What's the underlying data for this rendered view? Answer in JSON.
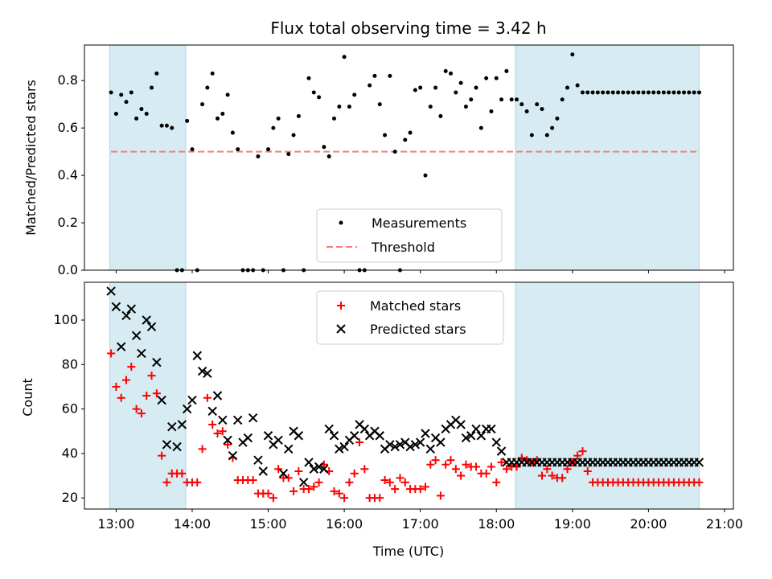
{
  "chart_data": [
    {
      "type": "scatter",
      "title": "Flux total observing time = 3.42 h",
      "xlabel": "",
      "ylabel": "Matched/Predicted stars",
      "ylim": [
        0,
        0.95
      ],
      "yticks": [
        "0.0",
        "0.2",
        "0.4",
        "0.6",
        "0.8"
      ],
      "threshold": {
        "name": "Threshold",
        "value": 0.5,
        "color": "#f08080"
      },
      "legend": {
        "position": "lower-center",
        "entries": [
          "Measurements",
          "Threshold"
        ]
      },
      "shaded_ranges": [
        [
          "12:55",
          "13:55"
        ],
        [
          "18:15",
          "20:40"
        ]
      ],
      "series": [
        {
          "name": "Measurements",
          "color": "#000000",
          "x": [
            "12:56",
            "13:00",
            "13:04",
            "13:08",
            "13:12",
            "13:16",
            "13:20",
            "13:24",
            "13:28",
            "13:32",
            "13:36",
            "13:40",
            "13:44",
            "13:48",
            "13:52",
            "13:56",
            "14:00",
            "14:04",
            "14:08",
            "14:12",
            "14:16",
            "14:20",
            "14:24",
            "14:28",
            "14:32",
            "14:36",
            "14:40",
            "14:44",
            "14:48",
            "14:52",
            "14:56",
            "15:00",
            "15:04",
            "15:08",
            "15:12",
            "15:16",
            "15:20",
            "15:24",
            "15:28",
            "15:32",
            "15:36",
            "15:40",
            "15:44",
            "15:48",
            "15:52",
            "15:56",
            "16:00",
            "16:04",
            "16:08",
            "16:12",
            "16:16",
            "16:20",
            "16:24",
            "16:28",
            "16:32",
            "16:36",
            "16:40",
            "16:44",
            "16:48",
            "16:52",
            "16:56",
            "17:00",
            "17:04",
            "17:08",
            "17:12",
            "17:16",
            "17:20",
            "17:24",
            "17:28",
            "17:32",
            "17:36",
            "17:40",
            "17:44",
            "17:48",
            "17:52",
            "17:56",
            "18:00",
            "18:04",
            "18:08",
            "18:12",
            "18:16",
            "18:20",
            "18:24",
            "18:28",
            "18:32",
            "18:36",
            "18:40",
            "18:44",
            "18:48",
            "18:52",
            "18:56",
            "19:00",
            "19:04",
            "19:08",
            "19:12",
            "19:16",
            "19:20",
            "19:24",
            "19:28",
            "19:32",
            "19:36",
            "19:40",
            "19:44",
            "19:48",
            "19:52",
            "19:56",
            "20:00",
            "20:04",
            "20:08",
            "20:12",
            "20:16",
            "20:20",
            "20:24",
            "20:28",
            "20:32",
            "20:36",
            "20:40"
          ],
          "y": [
            0.75,
            0.66,
            0.74,
            0.71,
            0.75,
            0.64,
            0.68,
            0.66,
            0.77,
            0.83,
            0.61,
            0.61,
            0.6,
            0.0,
            0.0,
            0.63,
            0.51,
            0.0,
            0.7,
            0.77,
            0.83,
            0.64,
            0.66,
            0.74,
            0.58,
            0.51,
            0.0,
            0.0,
            0.0,
            0.48,
            0.0,
            0.51,
            0.6,
            0.64,
            0.0,
            0.49,
            0.57,
            0.65,
            0.0,
            0.81,
            0.75,
            0.73,
            0.52,
            0.48,
            0.64,
            0.69,
            0.9,
            0.69,
            0.74,
            0.0,
            0.0,
            0.78,
            0.82,
            0.7,
            0.57,
            0.82,
            0.5,
            0.0,
            0.55,
            0.58,
            0.76,
            0.77,
            0.4,
            0.69,
            0.77,
            0.65,
            0.84,
            0.83,
            0.75,
            0.79,
            0.69,
            0.72,
            0.77,
            0.6,
            0.81,
            0.67,
            0.81,
            0.72,
            0.84,
            0.72,
            0.72,
            0.7,
            0.67,
            0.57,
            0.7,
            0.68,
            0.57,
            0.6,
            0.64,
            0.72,
            0.77,
            0.91,
            0.78,
            0.75,
            0.75,
            0.75,
            0.75,
            0.75,
            0.75,
            0.75,
            0.75,
            0.75,
            0.75,
            0.75,
            0.75,
            0.75,
            0.75,
            0.75,
            0.75,
            0.75,
            0.75,
            0.75,
            0.75,
            0.75,
            0.75,
            0.75,
            0.75
          ]
        }
      ]
    },
    {
      "type": "scatter",
      "title": "",
      "xlabel": "Time (UTC)",
      "ylabel": "Count",
      "ylim": [
        15,
        117
      ],
      "yticks": [
        "20",
        "40",
        "60",
        "80",
        "100"
      ],
      "xticks": [
        "13:00",
        "14:00",
        "15:00",
        "16:00",
        "17:00",
        "18:00",
        "19:00",
        "20:00",
        "21:00"
      ],
      "legend": {
        "position": "upper-center",
        "entries": [
          "Matched stars",
          "Predicted stars"
        ]
      },
      "shaded_ranges": [
        [
          "12:55",
          "13:55"
        ],
        [
          "18:15",
          "20:40"
        ]
      ],
      "series": [
        {
          "name": "Matched stars",
          "color": "#ff0000",
          "marker": "plus",
          "x": [
            "12:56",
            "13:00",
            "13:04",
            "13:08",
            "13:12",
            "13:16",
            "13:20",
            "13:24",
            "13:28",
            "13:32",
            "13:36",
            "13:40",
            "13:44",
            "13:48",
            "13:52",
            "13:56",
            "14:00",
            "14:04",
            "14:08",
            "14:12",
            "14:16",
            "14:20",
            "14:24",
            "14:28",
            "14:32",
            "14:36",
            "14:40",
            "14:44",
            "14:48",
            "14:52",
            "14:56",
            "15:00",
            "15:04",
            "15:08",
            "15:12",
            "15:16",
            "15:20",
            "15:24",
            "15:28",
            "15:32",
            "15:36",
            "15:40",
            "15:44",
            "15:48",
            "15:52",
            "15:56",
            "16:00",
            "16:04",
            "16:08",
            "16:12",
            "16:16",
            "16:20",
            "16:24",
            "16:28",
            "16:32",
            "16:36",
            "16:40",
            "16:44",
            "16:48",
            "16:52",
            "16:56",
            "17:00",
            "17:04",
            "17:08",
            "17:12",
            "17:16",
            "17:20",
            "17:24",
            "17:28",
            "17:32",
            "17:36",
            "17:40",
            "17:44",
            "17:48",
            "17:52",
            "17:56",
            "18:00",
            "18:04",
            "18:08",
            "18:12",
            "18:16",
            "18:20",
            "18:24",
            "18:28",
            "18:32",
            "18:36",
            "18:40",
            "18:44",
            "18:48",
            "18:52",
            "18:56",
            "19:00",
            "19:04",
            "19:08",
            "19:12",
            "19:16",
            "19:20",
            "19:24",
            "19:28",
            "19:32",
            "19:36",
            "19:40",
            "19:44",
            "19:48",
            "19:52",
            "19:56",
            "20:00",
            "20:04",
            "20:08",
            "20:12",
            "20:16",
            "20:20",
            "20:24",
            "20:28",
            "20:32",
            "20:36",
            "20:40"
          ],
          "y": [
            85,
            70,
            65,
            73,
            79,
            60,
            58,
            66,
            75,
            67,
            39,
            27,
            31,
            31,
            31,
            27,
            27,
            27,
            42,
            65,
            53,
            49,
            50,
            44,
            38,
            28,
            28,
            28,
            28,
            22,
            22,
            22,
            20,
            33,
            29,
            29,
            23,
            32,
            24,
            24,
            25,
            27,
            35,
            32,
            23,
            22,
            20,
            27,
            31,
            45,
            33,
            20,
            20,
            20,
            28,
            27,
            24,
            29,
            27,
            24,
            24,
            24,
            25,
            35,
            37,
            21,
            35,
            37,
            33,
            30,
            35,
            34,
            34,
            31,
            31,
            34,
            27,
            36,
            33,
            34,
            34,
            38,
            37,
            36,
            37,
            30,
            33,
            30,
            29,
            29,
            33,
            36,
            39,
            41,
            32,
            27,
            27,
            27,
            27,
            27,
            27,
            27,
            27,
            27,
            27,
            27,
            27,
            27,
            27,
            27,
            27,
            27,
            27,
            27,
            27,
            27,
            27
          ]
        },
        {
          "name": "Predicted stars",
          "color": "#000000",
          "marker": "x",
          "x": [
            "12:56",
            "13:00",
            "13:04",
            "13:08",
            "13:12",
            "13:16",
            "13:20",
            "13:24",
            "13:28",
            "13:32",
            "13:36",
            "13:40",
            "13:44",
            "13:48",
            "13:52",
            "13:56",
            "14:00",
            "14:04",
            "14:08",
            "14:12",
            "14:16",
            "14:20",
            "14:24",
            "14:28",
            "14:32",
            "14:36",
            "14:40",
            "14:44",
            "14:48",
            "14:52",
            "14:56",
            "15:00",
            "15:04",
            "15:08",
            "15:12",
            "15:16",
            "15:20",
            "15:24",
            "15:28",
            "15:32",
            "15:36",
            "15:40",
            "15:44",
            "15:48",
            "15:52",
            "15:56",
            "16:00",
            "16:04",
            "16:08",
            "16:12",
            "16:16",
            "16:20",
            "16:24",
            "16:28",
            "16:32",
            "16:36",
            "16:40",
            "16:44",
            "16:48",
            "16:52",
            "16:56",
            "17:00",
            "17:04",
            "17:08",
            "17:12",
            "17:16",
            "17:20",
            "17:24",
            "17:28",
            "17:32",
            "17:36",
            "17:40",
            "17:44",
            "17:48",
            "17:52",
            "17:56",
            "18:00",
            "18:04",
            "18:08",
            "18:12",
            "18:16",
            "18:20",
            "18:24",
            "18:28",
            "18:32",
            "18:36",
            "18:40",
            "18:44",
            "18:48",
            "18:52",
            "18:56",
            "19:00",
            "19:04",
            "19:08",
            "19:12",
            "19:16",
            "19:20",
            "19:24",
            "19:28",
            "19:32",
            "19:36",
            "19:40",
            "19:44",
            "19:48",
            "19:52",
            "19:56",
            "20:00",
            "20:04",
            "20:08",
            "20:12",
            "20:16",
            "20:20",
            "20:24",
            "20:28",
            "20:32",
            "20:36",
            "20:40"
          ],
          "y": [
            113,
            106,
            88,
            102,
            105,
            93,
            85,
            100,
            97,
            81,
            64,
            44,
            52,
            43,
            53,
            60,
            64,
            84,
            77,
            76,
            59,
            66,
            55,
            46,
            39,
            55,
            45,
            47,
            56,
            37,
            32,
            48,
            44,
            46,
            31,
            42,
            50,
            48,
            27,
            36,
            33,
            34,
            33,
            51,
            48,
            42,
            43,
            46,
            48,
            53,
            51,
            48,
            50,
            48,
            42,
            44,
            43,
            44,
            45,
            43,
            44,
            45,
            49,
            42,
            47,
            45,
            51,
            53,
            55,
            53,
            47,
            48,
            51,
            48,
            51,
            51,
            45,
            41,
            36,
            36,
            36,
            36,
            36,
            36,
            36,
            36,
            36,
            36,
            36,
            36,
            36,
            36,
            36,
            36,
            36,
            36,
            36,
            36,
            36,
            36,
            36,
            36,
            36,
            36,
            36,
            36,
            36,
            36,
            36,
            36,
            36,
            36,
            36,
            36,
            36,
            36,
            36
          ]
        }
      ]
    }
  ]
}
